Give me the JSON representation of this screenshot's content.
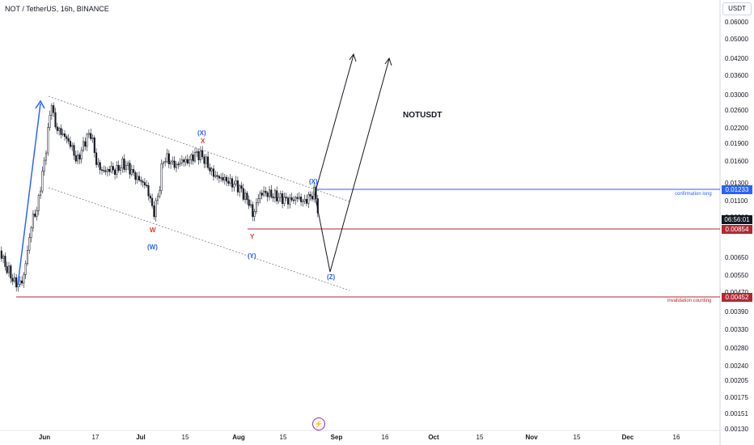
{
  "header": {
    "title": "NOT / TetherUS, 16h, BINANCE",
    "currency": "USDT"
  },
  "chart_data": {
    "type": "candlestick",
    "title": "NOTUSDT",
    "price_axis": {
      "ticks": [
        "0.06000",
        "0.05000",
        "0.04200",
        "0.03600",
        "0.03000",
        "0.02600",
        "0.02200",
        "0.01900",
        "0.01600",
        "0.01300",
        "0.01100",
        "0.00910",
        "0.00854",
        "0.00650",
        "0.00550",
        "0.00470",
        "0.00390",
        "0.00330",
        "0.00280",
        "0.00240",
        "0.00205",
        "0.00175",
        "0.00151",
        "0.00130"
      ],
      "scale": "log"
    },
    "time_axis": {
      "ticks": [
        {
          "label": "Jun",
          "bold": true
        },
        {
          "label": "17",
          "bold": false
        },
        {
          "label": "Jul",
          "bold": true
        },
        {
          "label": "15",
          "bold": false
        },
        {
          "label": "Aug",
          "bold": true
        },
        {
          "label": "15",
          "bold": false
        },
        {
          "label": "Sep",
          "bold": true
        },
        {
          "label": "16",
          "bold": false
        },
        {
          "label": "Oct",
          "bold": true
        },
        {
          "label": "15",
          "bold": false
        },
        {
          "label": "Nov",
          "bold": true
        },
        {
          "label": "15",
          "bold": false
        },
        {
          "label": "Dec",
          "bold": true
        },
        {
          "label": "16",
          "bold": false
        }
      ]
    },
    "price_tags": [
      {
        "value": "0.01233",
        "color": "#2962ff"
      },
      {
        "value": "06:56:01",
        "color": "#131722"
      },
      {
        "value": "0.00854",
        "color": "#b22833"
      },
      {
        "value": "0.00452",
        "color": "#b22833"
      }
    ],
    "levels": [
      {
        "name": "confirmation long",
        "price": 0.01233,
        "color": "#2962ff"
      },
      {
        "name": "invalidation counting",
        "price": 0.00452,
        "color": "#b22833"
      },
      {
        "name": "",
        "price": 0.00854,
        "color": "#b22833"
      }
    ],
    "wave_labels": [
      {
        "text": "W",
        "color": "#e53935"
      },
      {
        "text": "(W)",
        "color": "#2962ff"
      },
      {
        "text": "(X)",
        "color": "#2962ff"
      },
      {
        "text": "X",
        "color": "#e53935"
      },
      {
        "text": "Y",
        "color": "#e53935"
      },
      {
        "text": "(Y)",
        "color": "#2962ff"
      },
      {
        "text": "(X)",
        "color": "#2962ff"
      },
      {
        "text": "(Z)",
        "color": "#2962ff"
      }
    ]
  },
  "colors": {
    "accent_blue": "#2962ff",
    "level_red": "#b22833",
    "wave_red": "#e53935"
  }
}
